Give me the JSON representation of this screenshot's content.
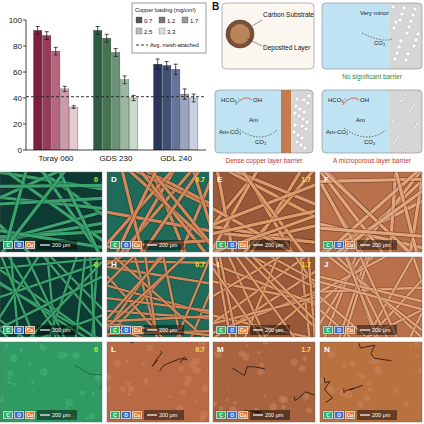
{
  "chart_data": {
    "type": "bar",
    "categories": [
      "Toray 060",
      "GDS 230",
      "GDL 240"
    ],
    "legend_title": "Copper loading (mg/cm²)",
    "legend": "upper right",
    "grid": false,
    "ylim": [
      0,
      100
    ],
    "yticks": [
      0,
      20,
      40,
      60,
      80,
      100
    ],
    "reference_line": {
      "label": "Avg. mesh-attached",
      "value": 41
    },
    "series": [
      {
        "name": "0.7",
        "color": "#555555",
        "colors": [
          "#7d1d3f",
          "#2c5b3f",
          "#27365a"
        ],
        "values": [
          92,
          92,
          66
        ],
        "errors": [
          3,
          3,
          4
        ]
      },
      {
        "name": "1.2",
        "color": "#777777",
        "colors": [
          "#9a3a58",
          "#44744f",
          "#3f5077"
        ],
        "values": [
          88,
          86,
          65
        ],
        "errors": [
          3,
          3,
          3
        ]
      },
      {
        "name": "1.7",
        "color": "#999999",
        "colors": [
          "#b5667c",
          "#6b9476",
          "#66739a"
        ],
        "values": [
          76,
          75,
          62
        ],
        "errors": [
          3,
          3,
          4
        ]
      },
      {
        "name": "2.5",
        "color": "#bbbbbb",
        "colors": [
          "#cf9aa8",
          "#9bb8a3",
          "#9ca5c0"
        ],
        "values": [
          47,
          54,
          43
        ],
        "errors": [
          2,
          3,
          4
        ]
      },
      {
        "name": "3.3",
        "color": "#dddddd",
        "colors": [
          "#e6cbd2",
          "#c9dbcc",
          "#cbd0e0"
        ],
        "values": [
          33,
          40,
          40
        ],
        "errors": [
          1,
          2,
          3
        ]
      }
    ]
  },
  "schematic": {
    "label": "B",
    "legend_box": {
      "carbon": "Carbon Substrate",
      "deposit": "Deposited Layer"
    },
    "scenes": [
      {
        "note": "Very minor",
        "species": [
          "CO₂"
        ],
        "caption": "No significant barrier"
      },
      {
        "species": [
          "HCO₃⁻",
          "OH",
          "Am-CO₂",
          "Am",
          "CO₂"
        ],
        "caption": "Dense copper layer barrier"
      },
      {
        "species": [
          "HCO₃⁻",
          "OH",
          "Am-CO₂",
          "Am",
          "CO₂"
        ],
        "caption": "A microporous layer barrier"
      }
    ]
  },
  "micrographs": {
    "scale_bar": "200 μm",
    "eds_legend": [
      "C",
      "O",
      "Cu"
    ],
    "panels": [
      {
        "loading": 0
      },
      {
        "label": "D",
        "loading": 0.7
      },
      {
        "label": "E",
        "loading": 1.7
      },
      {
        "label": "F"
      },
      {
        "loading": 0
      },
      {
        "label": "H",
        "loading": 0.7
      },
      {
        "label": "I",
        "loading": 1.7
      },
      {
        "label": "J"
      },
      {
        "loading": 0
      },
      {
        "label": "L",
        "loading": 0.7
      },
      {
        "label": "M",
        "loading": 1.7
      },
      {
        "label": "N"
      }
    ]
  }
}
